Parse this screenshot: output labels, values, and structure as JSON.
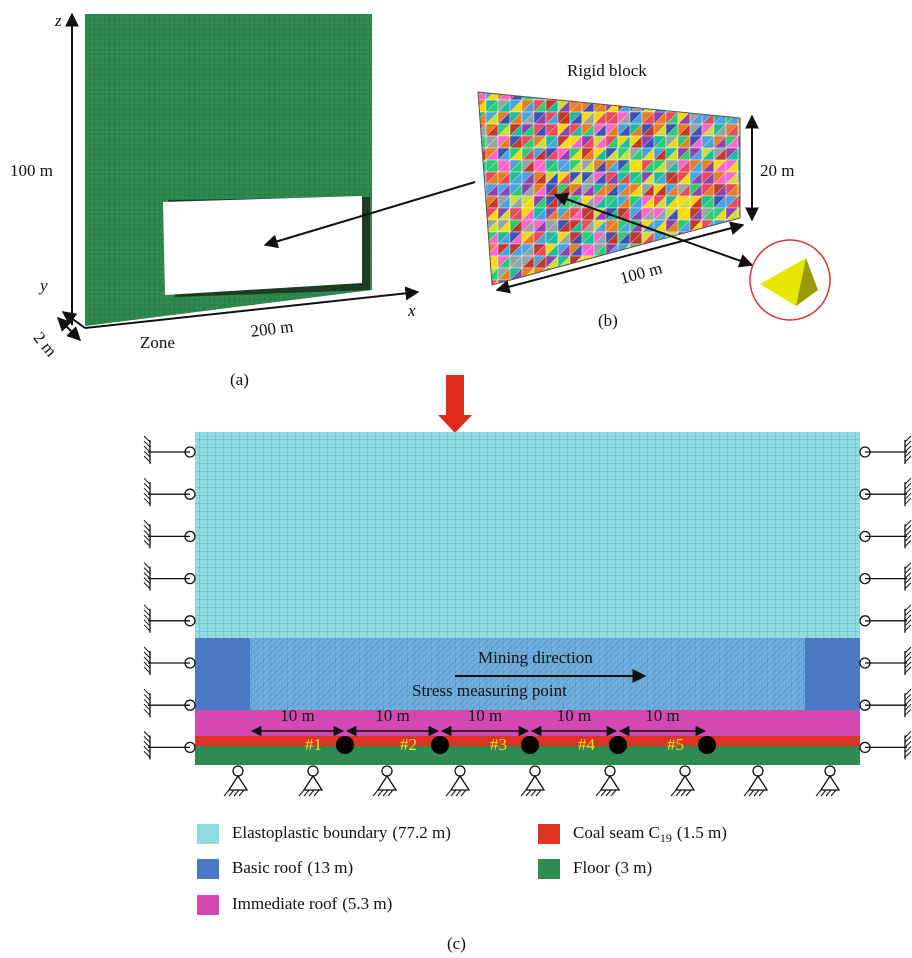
{
  "panel_a": {
    "axis_z": "z",
    "axis_y": "y",
    "axis_x": "x",
    "height": "100 m",
    "width": "200 m",
    "depth": "2 m",
    "zone": "Zone",
    "caption": "(a)"
  },
  "panel_b": {
    "title": "Rigid block",
    "height": "20 m",
    "length": "100 m",
    "caption": "(b)"
  },
  "panel_c": {
    "mining_direction": "Mining direction",
    "measuring_point": "Stress measuring point",
    "spacings": [
      "10 m",
      "10 m",
      "10 m",
      "10 m",
      "10 m"
    ],
    "points": [
      "#1",
      "#2",
      "#3",
      "#4",
      "#5"
    ],
    "caption": "(c)"
  },
  "legend": [
    {
      "label": "Elastoplastic boundary",
      "note": "(77.2 m)",
      "color": "#8fdde0"
    },
    {
      "label": "Coal seam C",
      "sub": "19",
      "note": "(1.5 m)",
      "color": "#e0321f"
    },
    {
      "label": "Basic roof",
      "note": "(13 m)",
      "color": "#4a78c4"
    },
    {
      "label": "Floor",
      "note": "(3 m)",
      "color": "#2f8a50"
    },
    {
      "label": "Immediate roof",
      "note": "(5.3 m)",
      "color": "#d647b4"
    }
  ]
}
